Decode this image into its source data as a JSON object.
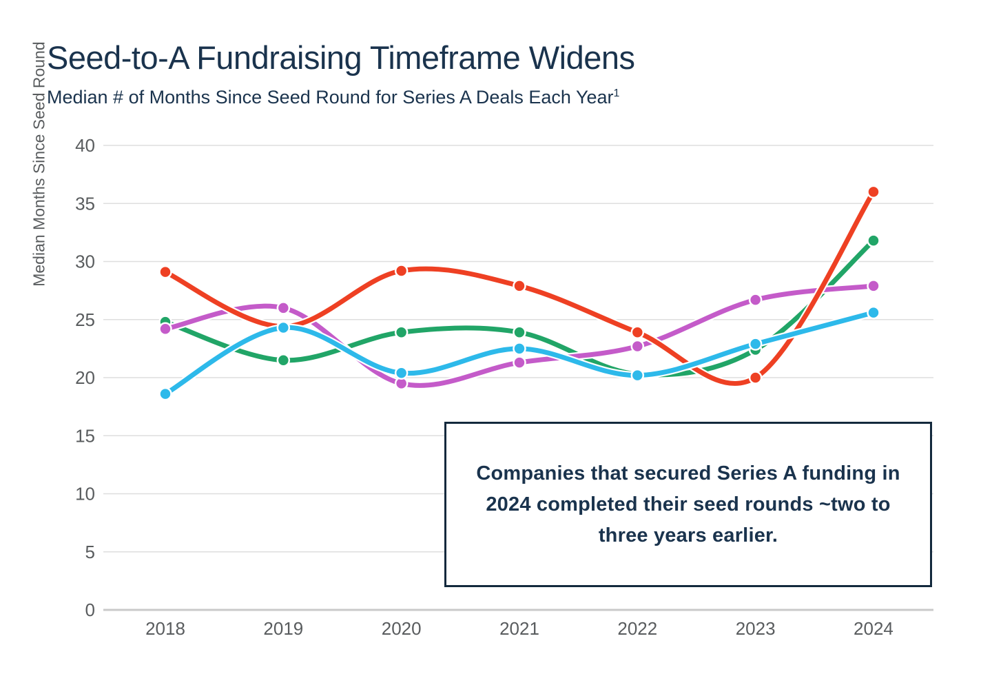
{
  "page": {
    "background": "#ffffff"
  },
  "header": {
    "title": "Seed-to-A Fundraising Timeframe Widens",
    "subtitle": "Median # of Months Since Seed Round for Series A Deals Each Year",
    "subtitle_superscript": "1"
  },
  "annotation": {
    "text": "Companies that secured Series A funding in 2024 completed their seed rounds ~two to three years earlier."
  },
  "chart_data": {
    "type": "line",
    "title": "Seed-to-A Fundraising Timeframe Widens",
    "xlabel": "",
    "ylabel": "Median Months Since Seed Round",
    "categories": [
      "2018",
      "2019",
      "2020",
      "2021",
      "2022",
      "2023",
      "2024"
    ],
    "series": [
      {
        "name": "green-series",
        "color": "#21a567",
        "values": [
          24.8,
          21.5,
          23.9,
          23.9,
          20.3,
          22.4,
          31.8
        ]
      },
      {
        "name": "purple-series",
        "color": "#c45bc9",
        "values": [
          24.2,
          26.0,
          19.5,
          21.3,
          22.7,
          26.7,
          27.9
        ]
      },
      {
        "name": "red-series",
        "color": "#ee4023",
        "values": [
          29.1,
          24.4,
          29.2,
          27.9,
          23.9,
          20.0,
          36.0
        ]
      },
      {
        "name": "blue-series",
        "color": "#2db9ea",
        "values": [
          18.6,
          24.3,
          20.4,
          22.5,
          20.2,
          22.9,
          25.6
        ]
      }
    ],
    "ylim": [
      0,
      40
    ],
    "yticks": [
      40,
      35,
      30,
      25,
      20,
      15,
      10,
      5,
      0
    ],
    "grid": true,
    "legend": "none",
    "curve": "smooth-spline",
    "style": {
      "grid_color": "#dedede",
      "axis_line_color": "#c9c9c9",
      "tick_text_color": "#595c5e",
      "line_width": 7,
      "marker_radius": 8.5,
      "marker_halo": "#ffffff"
    }
  }
}
